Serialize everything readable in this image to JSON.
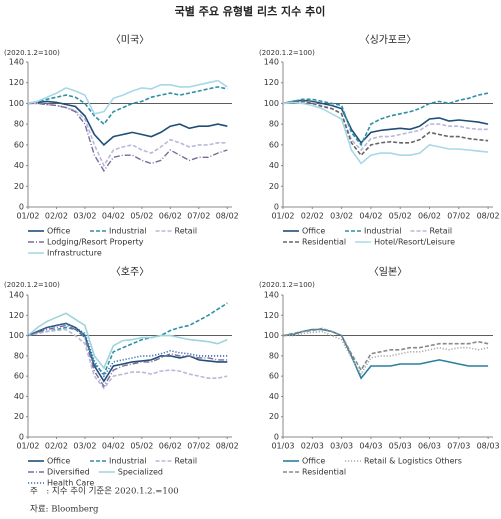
{
  "title": "국별 주요 유형별 리츠 지수 추이",
  "note": "주　: 지수 추이 기준은 2020.1.2.=100",
  "source": "자료: Bloomberg",
  "chart_data": [
    {
      "type": "line",
      "title": "〈미국〉",
      "ylabel": "(2020.1.2=100)",
      "categories": [
        "01/02",
        null,
        null,
        "02/02",
        null,
        null,
        "03/02",
        null,
        null,
        "04/02",
        null,
        null,
        "05/02",
        null,
        null,
        "06/02",
        null,
        null,
        "07/02",
        null,
        null,
        "08/02"
      ],
      "ylim": [
        0,
        140
      ],
      "yticks": [
        0,
        20,
        40,
        60,
        80,
        100,
        120,
        140
      ],
      "reference_line": 100,
      "series": [
        {
          "name": "Office",
          "color": "#1f4e79",
          "dash": "solid",
          "values": [
            100,
            101,
            102,
            101,
            99,
            97,
            88,
            70,
            60,
            68,
            70,
            72,
            70,
            68,
            72,
            78,
            80,
            76,
            78,
            78,
            80,
            78
          ]
        },
        {
          "name": "Industrial",
          "color": "#2e8fa8",
          "dash": "dashed",
          "values": [
            100,
            102,
            104,
            106,
            108,
            106,
            100,
            88,
            80,
            92,
            96,
            100,
            102,
            106,
            108,
            110,
            108,
            110,
            112,
            114,
            116,
            114
          ]
        },
        {
          "name": "Retail",
          "color": "#b8b8d8",
          "dash": "dashed",
          "values": [
            100,
            100,
            99,
            98,
            96,
            93,
            85,
            60,
            40,
            55,
            58,
            60,
            55,
            52,
            58,
            65,
            62,
            58,
            60,
            60,
            62,
            62
          ]
        },
        {
          "name": "Lodging/Resort Property",
          "color": "#7a6a9a",
          "dash": "dashdot",
          "values": [
            100,
            100,
            99,
            98,
            96,
            92,
            80,
            50,
            35,
            48,
            50,
            50,
            45,
            42,
            45,
            55,
            50,
            45,
            48,
            48,
            52,
            55
          ]
        },
        {
          "name": "Infrastructure",
          "color": "#a8d8e8",
          "dash": "solid",
          "values": [
            100,
            102,
            106,
            110,
            115,
            112,
            108,
            90,
            92,
            105,
            108,
            112,
            115,
            114,
            118,
            118,
            116,
            116,
            118,
            120,
            122,
            116
          ]
        }
      ]
    },
    {
      "type": "line",
      "title": "〈싱가포르〉",
      "ylabel": "(2020.1.2=100)",
      "categories": [
        "01/02",
        null,
        null,
        "02/02",
        null,
        null,
        "03/02",
        null,
        null,
        "04/02",
        null,
        null,
        "05/02",
        null,
        null,
        "06/02",
        null,
        null,
        "07/02",
        null,
        null,
        "08/02"
      ],
      "ylim": [
        0,
        140
      ],
      "yticks": [
        0,
        20,
        40,
        60,
        80,
        100,
        120,
        140
      ],
      "reference_line": 100,
      "series": [
        {
          "name": "Office",
          "color": "#1f4e79",
          "dash": "solid",
          "values": [
            100,
            102,
            103,
            102,
            100,
            98,
            95,
            75,
            62,
            72,
            74,
            75,
            76,
            75,
            78,
            85,
            86,
            83,
            84,
            83,
            82,
            80
          ]
        },
        {
          "name": "Industrial",
          "color": "#2e8fa8",
          "dash": "dashed",
          "values": [
            100,
            102,
            104,
            104,
            102,
            100,
            98,
            72,
            60,
            80,
            85,
            88,
            90,
            92,
            95,
            100,
            102,
            100,
            103,
            105,
            108,
            110
          ]
        },
        {
          "name": "Retail",
          "color": "#b8b8d8",
          "dash": "dashed",
          "values": [
            100,
            101,
            102,
            101,
            98,
            95,
            90,
            65,
            55,
            66,
            68,
            68,
            70,
            72,
            74,
            80,
            80,
            78,
            78,
            76,
            75,
            75
          ]
        },
        {
          "name": "Residential",
          "color": "#666666",
          "dash": "dashed",
          "values": [
            100,
            101,
            102,
            100,
            97,
            95,
            90,
            62,
            50,
            60,
            62,
            63,
            62,
            62,
            65,
            72,
            70,
            68,
            68,
            66,
            65,
            64
          ]
        },
        {
          "name": "Hotel/Resort/Leisure",
          "color": "#a8d8e8",
          "dash": "solid",
          "values": [
            100,
            101,
            100,
            98,
            95,
            90,
            85,
            55,
            42,
            50,
            52,
            52,
            50,
            50,
            52,
            60,
            58,
            56,
            56,
            55,
            54,
            53
          ]
        }
      ]
    },
    {
      "type": "line",
      "title": "〈호주〉",
      "ylabel": "(2020.1.2=100)",
      "categories": [
        "01/02",
        null,
        null,
        "02/02",
        null,
        null,
        "03/02",
        null,
        null,
        "04/02",
        null,
        null,
        "05/02",
        null,
        null,
        "06/02",
        null,
        null,
        "07/02",
        null,
        null,
        "08/02"
      ],
      "ylim": [
        0,
        140
      ],
      "yticks": [
        0,
        20,
        40,
        60,
        80,
        100,
        120,
        140
      ],
      "reference_line": 100,
      "series": [
        {
          "name": "Office",
          "color": "#1f4e79",
          "dash": "solid",
          "values": [
            100,
            104,
            108,
            110,
            112,
            108,
            100,
            70,
            55,
            70,
            72,
            74,
            75,
            76,
            80,
            80,
            78,
            80,
            76,
            75,
            74,
            74
          ]
        },
        {
          "name": "Industrial",
          "color": "#2e8fa8",
          "dash": "dashed",
          "values": [
            100,
            103,
            104,
            106,
            108,
            106,
            100,
            72,
            62,
            84,
            88,
            92,
            96,
            98,
            100,
            105,
            108,
            110,
            115,
            120,
            126,
            132
          ]
        },
        {
          "name": "Retail",
          "color": "#b8b8d8",
          "dash": "dashed",
          "values": [
            100,
            102,
            104,
            105,
            106,
            100,
            92,
            60,
            48,
            60,
            62,
            64,
            64,
            62,
            65,
            66,
            65,
            62,
            60,
            58,
            58,
            60
          ]
        },
        {
          "name": "Diversified",
          "color": "#7a6a9a",
          "dash": "dashdot",
          "values": [
            100,
            103,
            106,
            108,
            110,
            106,
            98,
            65,
            50,
            66,
            70,
            72,
            74,
            74,
            78,
            82,
            80,
            80,
            78,
            78,
            76,
            76
          ]
        },
        {
          "name": "Specialized",
          "color": "#9fd4dc",
          "dash": "solid",
          "values": [
            100,
            108,
            114,
            118,
            122,
            116,
            110,
            80,
            68,
            90,
            95,
            96,
            98,
            98,
            100,
            100,
            98,
            96,
            95,
            94,
            92,
            96
          ]
        },
        {
          "name": "Health Care",
          "color": "#3a6fb0",
          "dash": "dotted",
          "values": [
            100,
            104,
            108,
            110,
            112,
            108,
            102,
            75,
            60,
            74,
            76,
            78,
            80,
            80,
            82,
            85,
            83,
            82,
            80,
            80,
            80,
            80
          ]
        }
      ]
    },
    {
      "type": "line",
      "title": "〈일본〉",
      "ylabel": "(2020.1.2=100)",
      "categories": [
        "01/03",
        null,
        null,
        "02/03",
        null,
        null,
        "03/03",
        null,
        null,
        "04/03",
        null,
        null,
        "05/03",
        null,
        null,
        "06/03",
        null,
        null,
        "07/03",
        null,
        null,
        "08/03"
      ],
      "ylim": [
        0,
        140
      ],
      "yticks": [
        0,
        20,
        40,
        60,
        80,
        100,
        120,
        140
      ],
      "reference_line": 100,
      "series": [
        {
          "name": "Office",
          "color": "#2a7fa0",
          "dash": "solid",
          "values": [
            100,
            101,
            104,
            106,
            106,
            104,
            100,
            80,
            58,
            70,
            70,
            70,
            72,
            72,
            72,
            74,
            76,
            74,
            72,
            70,
            70,
            70
          ]
        },
        {
          "name": "Retail & Logistics Others",
          "color": "#aaaaaa",
          "dash": "dotted",
          "values": [
            100,
            100,
            102,
            103,
            104,
            100,
            96,
            78,
            62,
            78,
            80,
            80,
            82,
            84,
            84,
            86,
            88,
            86,
            88,
            88,
            86,
            88
          ]
        },
        {
          "name": "Residential",
          "color": "#888888",
          "dash": "dashed",
          "values": [
            100,
            102,
            104,
            105,
            107,
            104,
            100,
            82,
            66,
            82,
            84,
            86,
            86,
            88,
            88,
            90,
            92,
            92,
            92,
            92,
            94,
            92
          ]
        }
      ]
    }
  ]
}
